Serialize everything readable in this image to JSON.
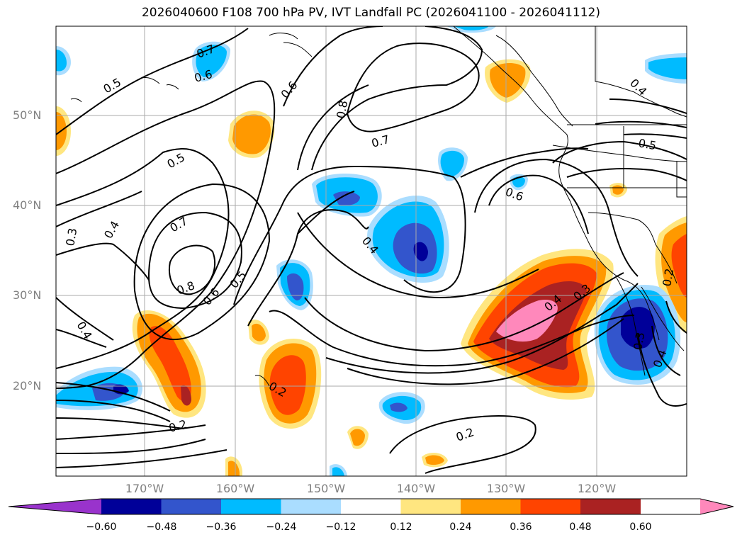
{
  "title": "2026040600 F108 700 hPa PV, IVT Landfall PC (2026041100 - 2026041112)",
  "latitude_labels": [
    "50°N",
    "40°N",
    "30°N",
    "20°N"
  ],
  "longitude_labels": [
    "170°W",
    "160°W",
    "150°W",
    "140°W",
    "130°W",
    "120°W"
  ],
  "contour_labels": [
    {
      "id": "c1",
      "text": "0.5"
    },
    {
      "id": "c2",
      "text": "0.7"
    },
    {
      "id": "c3",
      "text": "0.6"
    },
    {
      "id": "c4",
      "text": "0.6"
    },
    {
      "id": "c5",
      "text": "0.8"
    },
    {
      "id": "c6",
      "text": "0.7"
    },
    {
      "id": "c7",
      "text": "0.5"
    },
    {
      "id": "c8",
      "text": "0.6"
    },
    {
      "id": "c9",
      "text": "0.7"
    },
    {
      "id": "c10",
      "text": "0.4"
    },
    {
      "id": "c11",
      "text": "0.3"
    },
    {
      "id": "c12",
      "text": "0.8"
    },
    {
      "id": "c13",
      "text": "0.6"
    },
    {
      "id": "c14",
      "text": "0.5"
    },
    {
      "id": "c15",
      "text": "0.4"
    },
    {
      "id": "c16",
      "text": "0.4"
    },
    {
      "id": "c17",
      "text": "0.4"
    },
    {
      "id": "c18",
      "text": "0.3"
    },
    {
      "id": "c19",
      "text": "0.2"
    },
    {
      "id": "c20",
      "text": "0.2"
    },
    {
      "id": "c21",
      "text": "0.2"
    },
    {
      "id": "c22",
      "text": "0.5"
    },
    {
      "id": "c23",
      "text": "0.4"
    },
    {
      "id": "c24",
      "text": "0.3"
    },
    {
      "id": "c25",
      "text": "0.4"
    },
    {
      "id": "c26",
      "text": "0.2"
    }
  ],
  "colorbar": {
    "tick_labels": [
      "−0.60",
      "−0.48",
      "−0.36",
      "−0.24",
      "−0.12",
      "0.12",
      "0.24",
      "0.36",
      "0.48",
      "0.60"
    ],
    "colors": [
      "#9933cc",
      "#000099",
      "#3355cc",
      "#00bbff",
      "#aaddff",
      "#ffffff",
      "#ffe680",
      "#ff9900",
      "#ff4400",
      "#aa2222",
      "#ff88bb"
    ]
  }
}
